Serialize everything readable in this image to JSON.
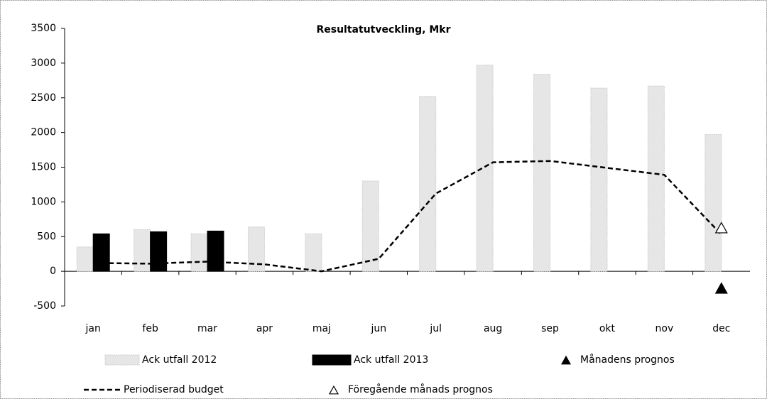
{
  "chart_data": {
    "type": "bar",
    "title": "Resultatutveckling, Mkr",
    "categories": [
      "jan",
      "feb",
      "mar",
      "apr",
      "maj",
      "jun",
      "jul",
      "aug",
      "sep",
      "okt",
      "nov",
      "dec"
    ],
    "series": [
      {
        "name": "Ack utfall 2012",
        "type": "bar",
        "color": "#e6e6e6",
        "values": [
          350,
          600,
          540,
          640,
          540,
          1300,
          2520,
          2970,
          2840,
          2640,
          2670,
          1970
        ]
      },
      {
        "name": "Ack utfall 2013",
        "type": "bar",
        "color": "#000000",
        "values": [
          540,
          570,
          580,
          null,
          null,
          null,
          null,
          null,
          null,
          null,
          null,
          null
        ]
      },
      {
        "name": "Månadens prognos",
        "type": "marker",
        "filled": true,
        "color": "#000000",
        "values": [
          null,
          null,
          null,
          null,
          null,
          null,
          null,
          null,
          null,
          null,
          null,
          -250
        ]
      },
      {
        "name": "Periodiserad budget",
        "type": "line",
        "dashed": true,
        "color": "#000000",
        "values": [
          120,
          110,
          140,
          100,
          0,
          180,
          1120,
          1570,
          1590,
          1490,
          1390,
          530
        ]
      },
      {
        "name": "Föregående månads prognos",
        "type": "marker",
        "filled": false,
        "color": "#000000",
        "values": [
          null,
          null,
          null,
          null,
          null,
          null,
          null,
          null,
          null,
          null,
          null,
          620
        ]
      }
    ],
    "ylim": [
      -500,
      3500
    ],
    "yticks": [
      -500,
      0,
      500,
      1000,
      1500,
      2000,
      2500,
      3000,
      3500
    ],
    "grid": false
  }
}
